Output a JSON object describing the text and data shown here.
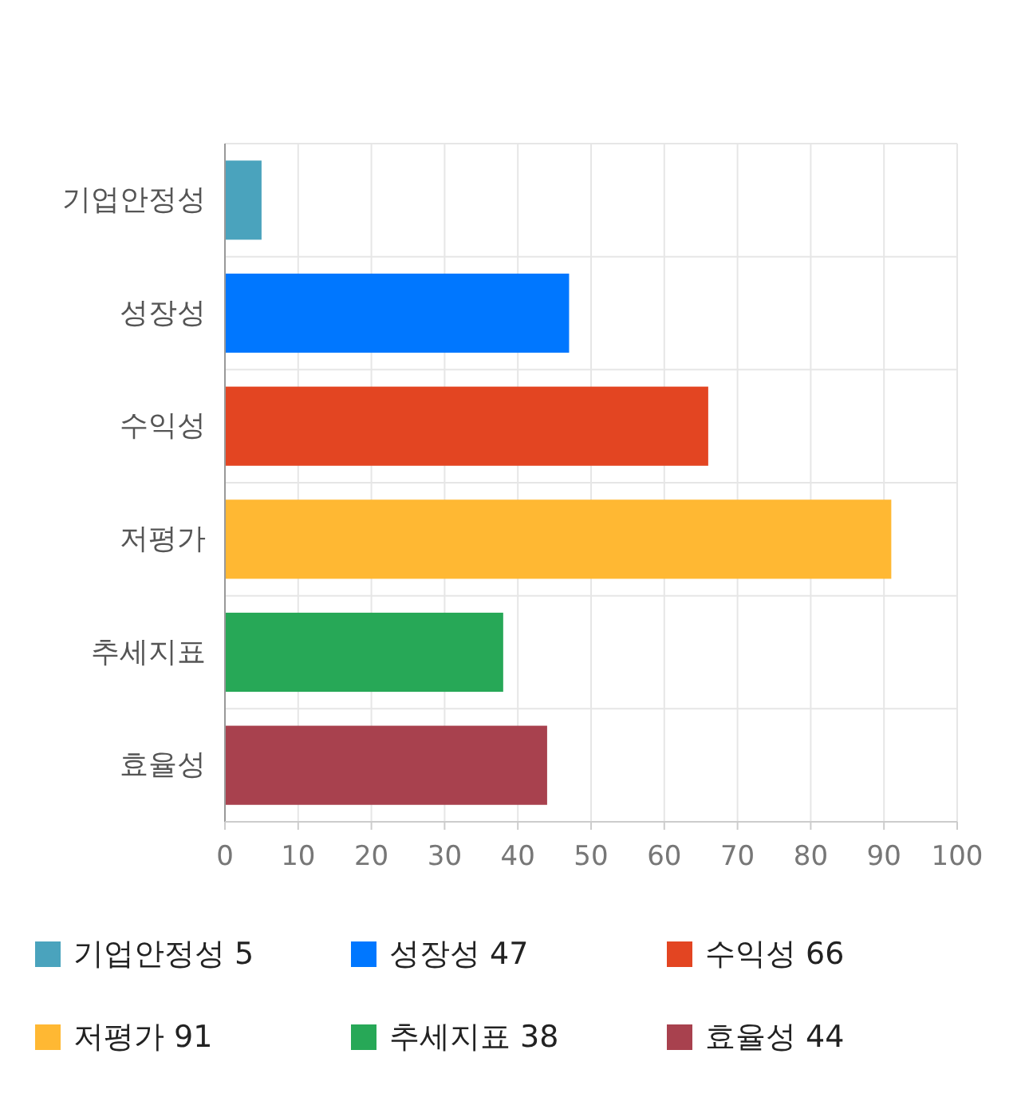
{
  "chart_data": {
    "type": "bar",
    "orientation": "horizontal",
    "stacked": true,
    "categories": [
      "기업안정성",
      "성장성",
      "수익성",
      "저평가",
      "추세지표",
      "효율성"
    ],
    "series": [
      {
        "name": "기업안정성 5",
        "color": "#4aa3bd",
        "values": [
          5,
          null,
          null,
          null,
          null,
          null
        ]
      },
      {
        "name": "성장성 47",
        "color": "#0077ff",
        "values": [
          null,
          47,
          null,
          null,
          null,
          null
        ]
      },
      {
        "name": "수익성 66",
        "color": "#e34522",
        "values": [
          null,
          null,
          66,
          null,
          null,
          null
        ]
      },
      {
        "name": "저평가 91",
        "color": "#ffb833",
        "values": [
          null,
          null,
          null,
          91,
          null,
          null
        ]
      },
      {
        "name": "추세지표 38",
        "color": "#27a857",
        "values": [
          null,
          null,
          null,
          null,
          38,
          null
        ]
      },
      {
        "name": "효율성 44",
        "color": "#a8414e",
        "values": [
          null,
          null,
          null,
          null,
          null,
          44
        ]
      }
    ],
    "xlim": [
      0,
      100
    ],
    "xticks": [
      0,
      10,
      20,
      30,
      40,
      50,
      60,
      70,
      80,
      90,
      100
    ],
    "grid": true,
    "legend": "bottom"
  }
}
